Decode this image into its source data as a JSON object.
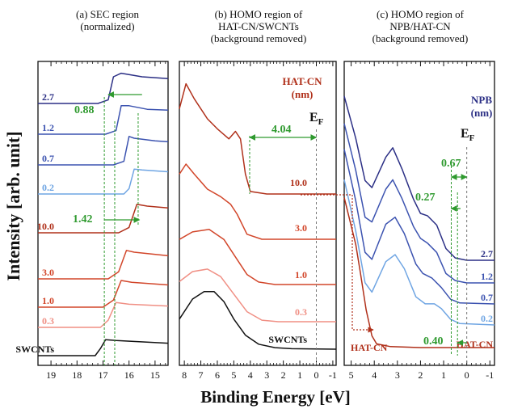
{
  "figure": {
    "ylabel": "Intensity [arb. unit]",
    "xlabel": "Binding Energy [eV]"
  },
  "colors": {
    "black": "#111111",
    "red_dark": "#b0301a",
    "red_mid": "#d2462a",
    "red_light": "#f08f84",
    "blue_dark": "#2b2f85",
    "blue_mid": "#3c53b0",
    "blue_light": "#6fa5e3",
    "green": "#2f9a2f",
    "annot_red": "#b0301a",
    "annot_blue": "#2b2f85"
  },
  "chart_data": [
    {
      "type": "line",
      "title": "(a) SEC region\n(normalized)",
      "xlim": [
        19.5,
        14.5
      ],
      "xticks": [
        19,
        18,
        17,
        16,
        15
      ],
      "series": [
        {
          "name": "2.7",
          "color": "#2b2f85",
          "points": [
            [
              19.5,
              0
            ],
            [
              17.2,
              0
            ],
            [
              16.8,
              0.2
            ],
            [
              16.6,
              1.5
            ],
            [
              16.3,
              1.7
            ],
            [
              15.5,
              1.5
            ],
            [
              14.5,
              1.4
            ]
          ]
        },
        {
          "name": "1.2",
          "color": "#3c53b0",
          "points": [
            [
              19.5,
              0
            ],
            [
              16.9,
              0
            ],
            [
              16.5,
              0.2
            ],
            [
              16.3,
              1.6
            ],
            [
              16.0,
              1.6
            ],
            [
              15.3,
              1.4
            ],
            [
              14.5,
              1.35
            ]
          ]
        },
        {
          "name": "0.7",
          "color": "#3c53b0",
          "points": [
            [
              19.5,
              0
            ],
            [
              16.6,
              0
            ],
            [
              16.2,
              0.2
            ],
            [
              16.0,
              1.6
            ],
            [
              15.8,
              1.5
            ],
            [
              15.0,
              1.35
            ],
            [
              14.5,
              1.3
            ]
          ]
        },
        {
          "name": "0.2",
          "color": "#6fa5e3",
          "points": [
            [
              19.5,
              0
            ],
            [
              16.2,
              0
            ],
            [
              16.0,
              0.3
            ],
            [
              15.8,
              1.4
            ],
            [
              15.5,
              1.35
            ],
            [
              14.5,
              1.25
            ]
          ]
        },
        {
          "name": "10.0",
          "color": "#b0301a",
          "points": [
            [
              19.5,
              0
            ],
            [
              16.4,
              0
            ],
            [
              16.0,
              0.3
            ],
            [
              15.7,
              1.6
            ],
            [
              15.3,
              1.5
            ],
            [
              14.5,
              1.4
            ]
          ]
        },
        {
          "name": "3.0",
          "color": "#d2462a",
          "points": [
            [
              19.5,
              0
            ],
            [
              16.8,
              0
            ],
            [
              16.4,
              0.4
            ],
            [
              16.1,
              1.6
            ],
            [
              15.8,
              1.5
            ],
            [
              14.5,
              1.3
            ]
          ]
        },
        {
          "name": "1.0",
          "color": "#d2462a",
          "points": [
            [
              19.5,
              0
            ],
            [
              17.0,
              0
            ],
            [
              16.6,
              0.4
            ],
            [
              16.3,
              1.5
            ],
            [
              15.9,
              1.4
            ],
            [
              14.5,
              1.25
            ]
          ]
        },
        {
          "name": "0.3",
          "color": "#f08f84",
          "points": [
            [
              19.5,
              0
            ],
            [
              17.1,
              0
            ],
            [
              16.8,
              0.4
            ],
            [
              16.5,
              1.4
            ],
            [
              16.0,
              1.3
            ],
            [
              14.5,
              1.2
            ]
          ]
        },
        {
          "name": "SWCNTs",
          "color": "#111111",
          "points": [
            [
              19.5,
              0
            ],
            [
              17.3,
              0
            ],
            [
              17.1,
              0.4
            ],
            [
              16.9,
              0.9
            ],
            [
              16.5,
              0.85
            ],
            [
              14.5,
              0.7
            ]
          ]
        }
      ],
      "annotations": {
        "value_1": "0.88",
        "value_2": "1.42"
      }
    },
    {
      "type": "line",
      "title": "(b) HOMO region of\nHAT-CN/SWCNTs\n(background removed)",
      "xlim": [
        8.3,
        -1.2
      ],
      "xticks": [
        8,
        7,
        6,
        5,
        4,
        3,
        2,
        1,
        0,
        -1
      ],
      "legend_title": "HAT-CN\n(nm)",
      "series": [
        {
          "name": "10.0",
          "color": "#b0301a",
          "points": [
            [
              8.3,
              1.7
            ],
            [
              7.9,
              2.2
            ],
            [
              7.4,
              1.9
            ],
            [
              6.6,
              1.5
            ],
            [
              6.0,
              1.3
            ],
            [
              5.3,
              1.1
            ],
            [
              4.9,
              1.25
            ],
            [
              4.6,
              1.1
            ],
            [
              4.3,
              0.4
            ],
            [
              4.0,
              0.05
            ],
            [
              3.0,
              0
            ],
            [
              -1.2,
              0
            ]
          ]
        },
        {
          "name": "3.0",
          "color": "#d2462a",
          "points": [
            [
              8.3,
              1.3
            ],
            [
              7.9,
              1.5
            ],
            [
              7.4,
              1.3
            ],
            [
              6.6,
              1.0
            ],
            [
              5.8,
              0.85
            ],
            [
              5.2,
              0.7
            ],
            [
              4.8,
              0.5
            ],
            [
              4.2,
              0.1
            ],
            [
              3.3,
              0
            ],
            [
              -1.2,
              0
            ]
          ]
        },
        {
          "name": "1.0",
          "color": "#d2462a",
          "points": [
            [
              8.3,
              0.9
            ],
            [
              7.5,
              1.05
            ],
            [
              6.5,
              1.1
            ],
            [
              5.6,
              0.9
            ],
            [
              4.9,
              0.55
            ],
            [
              4.2,
              0.2
            ],
            [
              3.5,
              0.05
            ],
            [
              2.5,
              0
            ],
            [
              -1.2,
              0
            ]
          ]
        },
        {
          "name": "0.3",
          "color": "#f08f84",
          "points": [
            [
              8.3,
              0.8
            ],
            [
              7.5,
              1.0
            ],
            [
              6.6,
              1.05
            ],
            [
              5.8,
              0.9
            ],
            [
              5.0,
              0.55
            ],
            [
              4.2,
              0.2
            ],
            [
              3.3,
              0.03
            ],
            [
              2.3,
              0
            ],
            [
              -1.2,
              0
            ]
          ]
        },
        {
          "name": "SWCNTs",
          "color": "#111111",
          "points": [
            [
              8.3,
              0.6
            ],
            [
              7.5,
              1.0
            ],
            [
              6.8,
              1.15
            ],
            [
              6.2,
              1.15
            ],
            [
              5.6,
              0.95
            ],
            [
              5.0,
              0.6
            ],
            [
              4.3,
              0.28
            ],
            [
              3.5,
              0.1
            ],
            [
              2.5,
              0.03
            ],
            [
              1.5,
              0.01
            ],
            [
              -1.2,
              0
            ]
          ]
        }
      ],
      "annotations": {
        "gap": "4.04",
        "fermi": "E",
        "fermi_sub": "F"
      }
    },
    {
      "type": "line",
      "title": "(c) HOMO region of\nNPB/HAT-CN\n(background removed)",
      "xlim": [
        5.3,
        -1.2
      ],
      "xticks": [
        5,
        4,
        3,
        2,
        1,
        0,
        -1
      ],
      "legend_title": "NPB\n(nm)",
      "series": [
        {
          "name": "2.7",
          "color": "#2b2f85",
          "points": [
            [
              5.3,
              3.5
            ],
            [
              4.8,
              2.6
            ],
            [
              4.4,
              1.7
            ],
            [
              4.1,
              1.55
            ],
            [
              3.5,
              2.2
            ],
            [
              3.2,
              2.4
            ],
            [
              2.8,
              1.95
            ],
            [
              2.3,
              1.3
            ],
            [
              2.0,
              1.0
            ],
            [
              1.7,
              0.95
            ],
            [
              1.3,
              0.75
            ],
            [
              0.9,
              0.25
            ],
            [
              0.5,
              0.05
            ],
            [
              0,
              0
            ],
            [
              -1.2,
              0
            ]
          ]
        },
        {
          "name": "1.2",
          "color": "#3c53b0",
          "points": [
            [
              5.3,
              3.4
            ],
            [
              4.8,
              2.4
            ],
            [
              4.4,
              1.4
            ],
            [
              4.1,
              1.3
            ],
            [
              3.5,
              2.0
            ],
            [
              3.2,
              2.2
            ],
            [
              2.8,
              1.8
            ],
            [
              2.3,
              1.2
            ],
            [
              2.0,
              0.95
            ],
            [
              1.7,
              0.85
            ],
            [
              1.3,
              0.65
            ],
            [
              0.9,
              0.2
            ],
            [
              0.5,
              0.05
            ],
            [
              0,
              0
            ],
            [
              -1.2,
              0
            ]
          ]
        },
        {
          "name": "0.7",
          "color": "#3c53b0",
          "points": [
            [
              5.3,
              3.3
            ],
            [
              4.8,
              2.2
            ],
            [
              4.4,
              1.1
            ],
            [
              4.1,
              0.95
            ],
            [
              3.5,
              1.7
            ],
            [
              3.1,
              1.85
            ],
            [
              2.7,
              1.5
            ],
            [
              2.2,
              0.85
            ],
            [
              1.9,
              0.65
            ],
            [
              1.5,
              0.55
            ],
            [
              1.1,
              0.35
            ],
            [
              0.7,
              0.1
            ],
            [
              0.3,
              0.02
            ],
            [
              -1.2,
              0
            ]
          ]
        },
        {
          "name": "0.2",
          "color": "#6fa5e3",
          "points": [
            [
              5.3,
              3.1
            ],
            [
              4.8,
              2.0
            ],
            [
              4.4,
              0.9
            ],
            [
              4.1,
              0.7
            ],
            [
              3.5,
              1.35
            ],
            [
              3.1,
              1.5
            ],
            [
              2.7,
              1.2
            ],
            [
              2.2,
              0.6
            ],
            [
              1.8,
              0.45
            ],
            [
              1.4,
              0.45
            ],
            [
              1.1,
              0.35
            ],
            [
              0.7,
              0.12
            ],
            [
              0.3,
              0.03
            ],
            [
              -1.2,
              0
            ]
          ]
        },
        {
          "name": "HAT-CN",
          "color": "#b0301a",
          "points": [
            [
              5.3,
              3.2
            ],
            [
              4.8,
              2.2
            ],
            [
              4.6,
              1.6
            ],
            [
              4.35,
              0.8
            ],
            [
              4.1,
              0.25
            ],
            [
              3.9,
              0.08
            ],
            [
              3.3,
              0.02
            ],
            [
              2.0,
              0
            ],
            [
              -1.2,
              0
            ]
          ]
        }
      ],
      "annotations": {
        "gap_1": "0.67",
        "gap_2": "0.27",
        "gap_3": "0.40",
        "fermi": "E",
        "fermi_sub": "F"
      }
    }
  ]
}
